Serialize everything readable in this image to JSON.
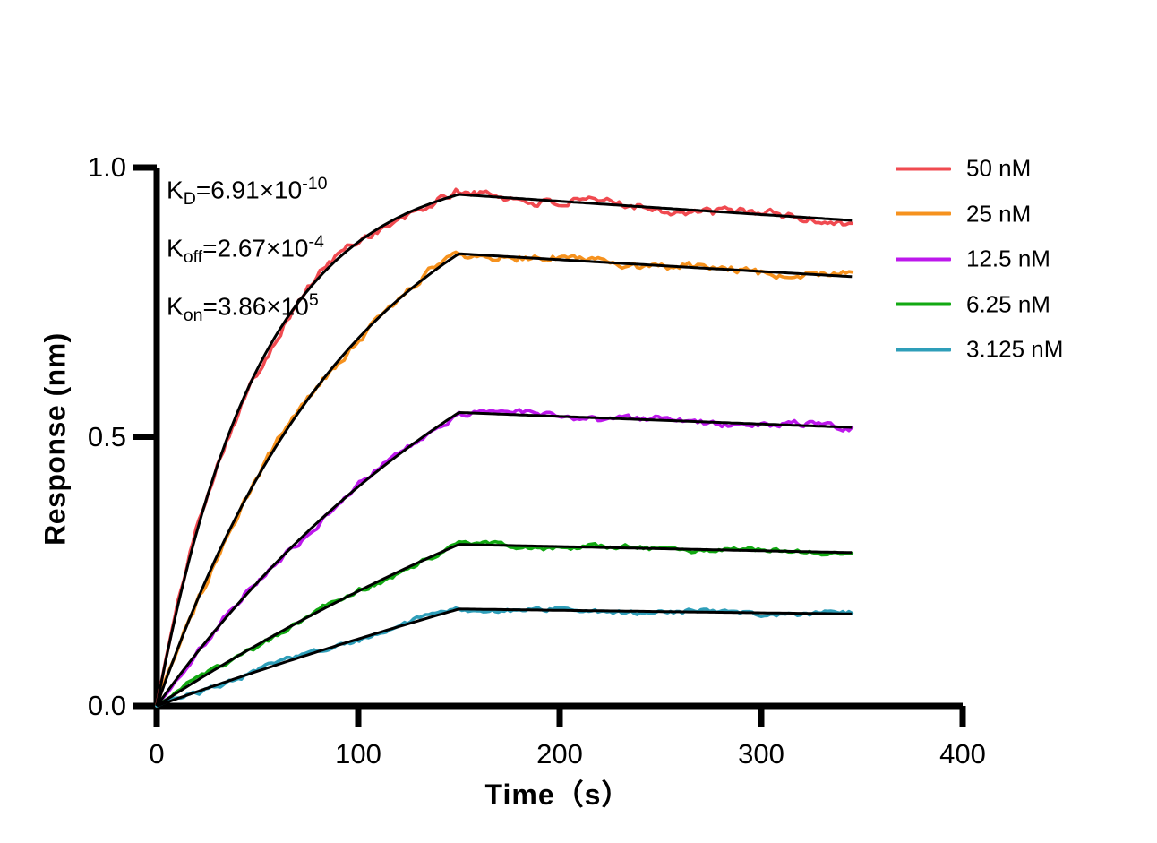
{
  "chart_data": {
    "type": "line",
    "title": "",
    "xlabel": "Time（s）",
    "ylabel": "Response (nm)",
    "xlim": [
      0,
      400
    ],
    "ylim": [
      0.0,
      1.0
    ],
    "x_ticks": [
      0,
      100,
      200,
      300,
      400
    ],
    "y_ticks": [
      "0.0",
      "0.5",
      "1.0"
    ],
    "grid": false,
    "legend_position": "right",
    "axis_color": "#000000",
    "fit_line_color": "#000000",
    "kinetics": {
      "kd_M": 6.91e-10,
      "koff_s": 0.000267,
      "kon_M_s": 386000
    },
    "annotations": [
      {
        "name": "kd",
        "segments": [
          {
            "text": "K"
          },
          {
            "text": "D",
            "script": "sub"
          },
          {
            "text": "=6.91×10"
          },
          {
            "text": "-10",
            "script": "sup"
          }
        ]
      },
      {
        "name": "koff",
        "segments": [
          {
            "text": "K"
          },
          {
            "text": "off",
            "script": "sub"
          },
          {
            "text": "=2.67×10"
          },
          {
            "text": "-4",
            "script": "sup"
          }
        ]
      },
      {
        "name": "kon",
        "segments": [
          {
            "text": "K"
          },
          {
            "text": "on",
            "script": "sub"
          },
          {
            "text": "=3.86×10"
          },
          {
            "text": "5",
            "script": "sup"
          }
        ]
      }
    ],
    "phases": {
      "association_start_s": 0,
      "association_end_s": 150,
      "dissociation_end_s": 345
    },
    "sample_times_s": [
      0,
      50,
      100,
      150,
      345
    ],
    "series": [
      {
        "label": "50 nM",
        "concentration_nM": 50,
        "color": "#F04A50",
        "peak_nm": 0.95,
        "end_nm": 0.9,
        "responses_nm": [
          0,
          0.63,
          0.86,
          0.95,
          0.9
        ]
      },
      {
        "label": "25 nM",
        "concentration_nM": 25,
        "color": "#F6921E",
        "peak_nm": 0.84,
        "end_nm": 0.8,
        "responses_nm": [
          0,
          0.42,
          0.68,
          0.84,
          0.8
        ]
      },
      {
        "label": "12.5 nM",
        "concentration_nM": 12.5,
        "color": "#BD18EC",
        "peak_nm": 0.545,
        "end_nm": 0.52,
        "responses_nm": [
          0,
          0.23,
          0.41,
          0.545,
          0.52
        ]
      },
      {
        "label": "6.25 nM",
        "concentration_nM": 6.25,
        "color": "#12A912",
        "peak_nm": 0.3,
        "end_nm": 0.285,
        "responses_nm": [
          0,
          0.11,
          0.21,
          0.3,
          0.285
        ]
      },
      {
        "label": "3.125 nM",
        "concentration_nM": 3.125,
        "color": "#2E9EB9",
        "peak_nm": 0.18,
        "end_nm": 0.17,
        "responses_nm": [
          0,
          0.065,
          0.12,
          0.18,
          0.17
        ]
      }
    ]
  }
}
